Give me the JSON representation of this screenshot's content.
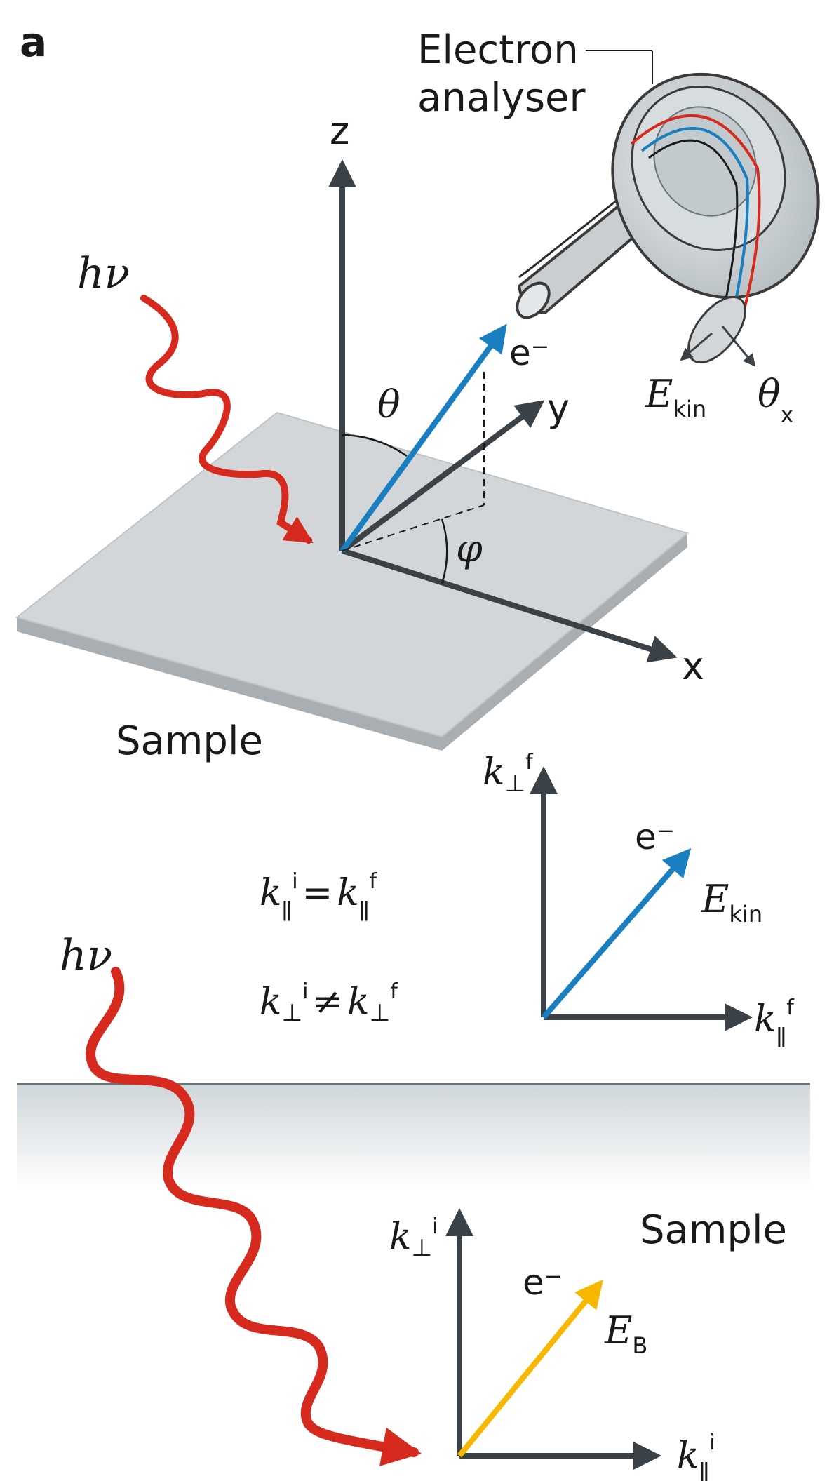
{
  "panel_label": "a",
  "analyser": {
    "label_line1": "Electron",
    "label_line2": "analyser",
    "energy_label": "E",
    "energy_sub": "kin",
    "angle_label": "θ",
    "angle_sub": "x"
  },
  "top": {
    "photon": "hν",
    "axis_z": "z",
    "axis_y": "y",
    "axis_x": "x",
    "electron": "e⁻",
    "theta": "θ",
    "phi": "φ",
    "sample": "Sample"
  },
  "conservation": {
    "eq1_lhs": "k",
    "eq1_lhs_sub": "ǁ",
    "eq1_lhs_sup": "i",
    "eq1_op": "=",
    "eq1_rhs": "k",
    "eq1_rhs_sub": "ǁ",
    "eq1_rhs_sup": "f",
    "eq2_lhs": "k",
    "eq2_lhs_sub": "⊥",
    "eq2_lhs_sup": "i",
    "eq2_op": "≠",
    "eq2_rhs": "k",
    "eq2_rhs_sub": "⊥",
    "eq2_rhs_sup": "f"
  },
  "outside": {
    "axis_vert": "k",
    "axis_vert_sub": "⊥",
    "axis_vert_sup": "f",
    "axis_horiz": "k",
    "axis_horiz_sub": "ǁ",
    "axis_horiz_sup": "f",
    "electron": "e⁻",
    "energy": "E",
    "energy_sub": "kin"
  },
  "inside": {
    "photon": "hν",
    "sample": "Sample",
    "axis_vert": "k",
    "axis_vert_sub": "⊥",
    "axis_vert_sup": "i",
    "axis_horiz": "k",
    "axis_horiz_sub": "ǁ",
    "axis_horiz_sup": "i",
    "electron": "e⁻",
    "energy": "E",
    "energy_sub": "B"
  },
  "colors": {
    "photon": "#d62a1e",
    "electron_out": "#1a7fc1",
    "electron_in": "#f6b800",
    "axis": "#3a4147",
    "sample_top": "#d3d6d9",
    "sample_side": "#a9aeb2"
  }
}
